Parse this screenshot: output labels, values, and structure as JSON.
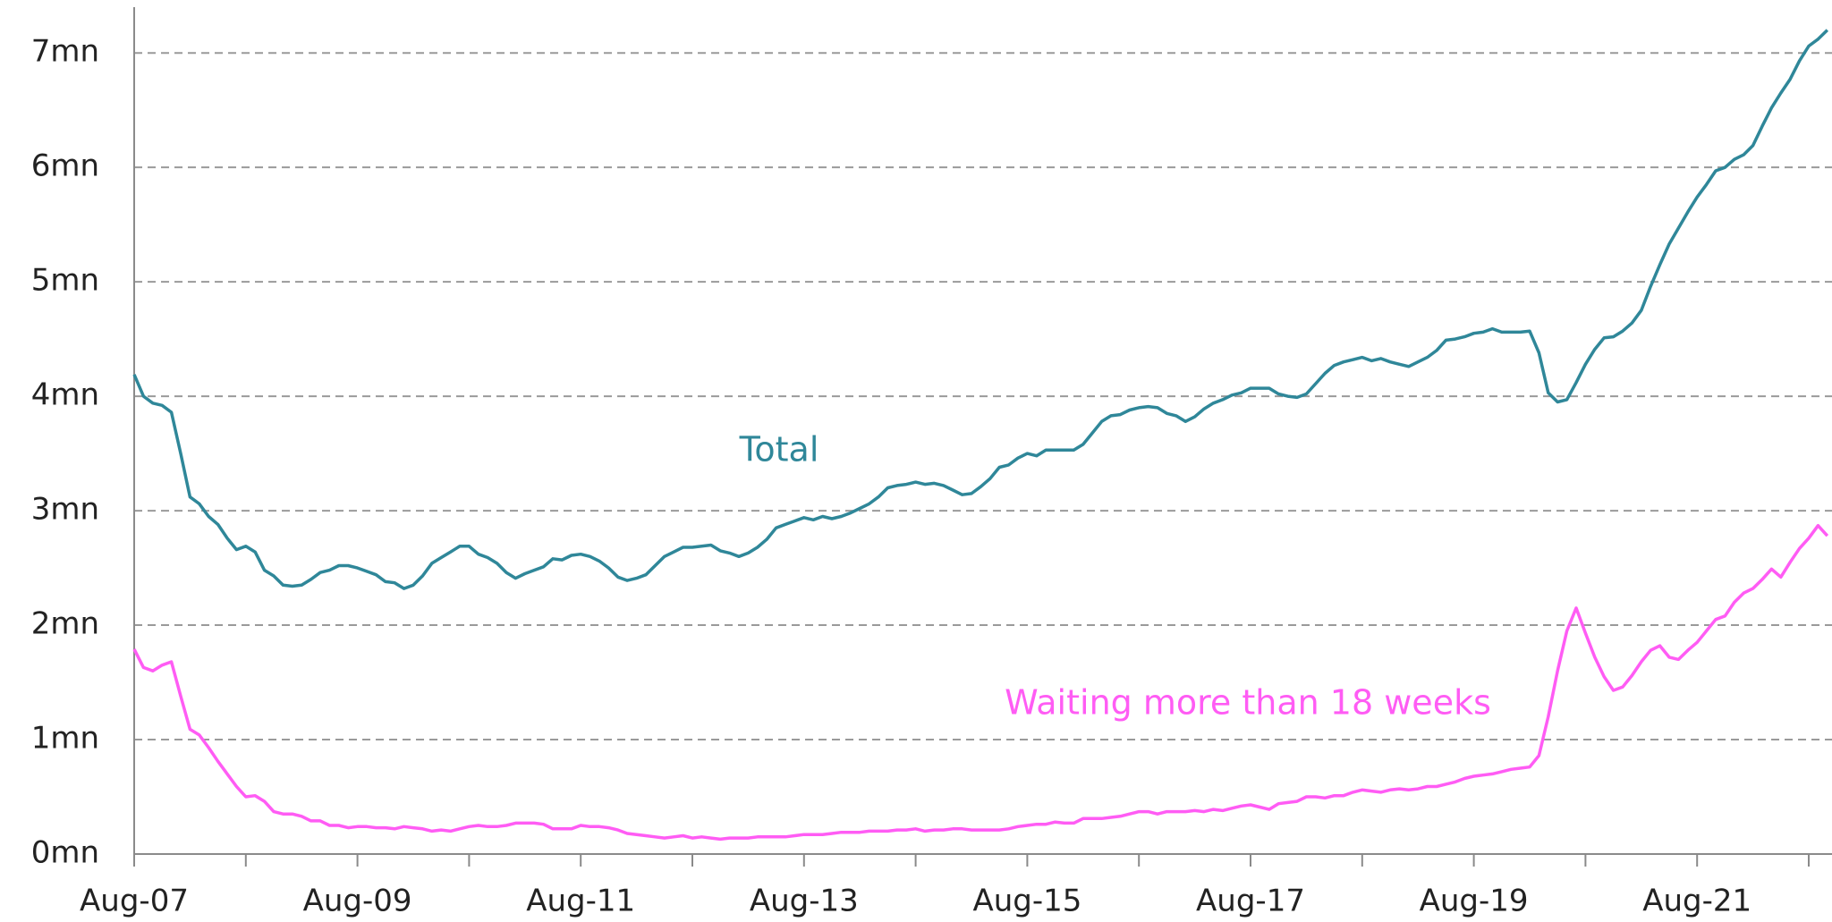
{
  "chart_data": {
    "type": "line",
    "categories": [
      "Aug-07",
      null,
      null,
      null,
      null,
      null,
      null,
      null,
      null,
      null,
      null,
      null,
      null,
      null,
      null,
      null,
      null,
      null,
      null,
      null,
      null,
      null,
      null,
      null,
      "Aug-09",
      null,
      null,
      null,
      null,
      null,
      null,
      null,
      null,
      null,
      null,
      null,
      null,
      null,
      null,
      null,
      null,
      null,
      null,
      null,
      null,
      null,
      null,
      null,
      "Aug-11",
      null,
      null,
      null,
      null,
      null,
      null,
      null,
      null,
      null,
      null,
      null,
      null,
      null,
      null,
      null,
      null,
      null,
      null,
      null,
      null,
      null,
      null,
      null,
      "Aug-13",
      null,
      null,
      null,
      null,
      null,
      null,
      null,
      null,
      null,
      null,
      null,
      null,
      null,
      null,
      null,
      null,
      null,
      null,
      null,
      null,
      null,
      null,
      null,
      "Aug-15",
      null,
      null,
      null,
      null,
      null,
      null,
      null,
      null,
      null,
      null,
      null,
      null,
      null,
      null,
      null,
      null,
      null,
      null,
      null,
      null,
      null,
      null,
      null,
      "Aug-17",
      null,
      null,
      null,
      null,
      null,
      null,
      null,
      null,
      null,
      null,
      null,
      null,
      null,
      null,
      null,
      null,
      null,
      null,
      null,
      null,
      null,
      null,
      null,
      "Aug-19",
      null,
      null,
      null,
      null,
      null,
      null,
      null,
      null,
      null,
      null,
      null,
      null,
      null,
      null,
      null,
      null,
      null,
      null,
      null,
      null,
      null,
      null,
      null,
      "Aug-21",
      null,
      null,
      null,
      null,
      null,
      null,
      null,
      null,
      null,
      null,
      null,
      null,
      null,
      null
    ],
    "series": [
      {
        "name": "Total",
        "color": "#2f8799",
        "values": [
          4.19,
          4.0,
          3.94,
          3.92,
          3.86,
          3.5,
          3.12,
          3.06,
          2.95,
          2.88,
          2.76,
          2.66,
          2.69,
          2.64,
          2.48,
          2.43,
          2.35,
          2.34,
          2.35,
          2.4,
          2.46,
          2.48,
          2.52,
          2.52,
          2.5,
          2.47,
          2.44,
          2.38,
          2.37,
          2.32,
          2.35,
          2.43,
          2.54,
          2.59,
          2.64,
          2.69,
          2.69,
          2.62,
          2.59,
          2.54,
          2.46,
          2.41,
          2.45,
          2.48,
          2.51,
          2.58,
          2.57,
          2.61,
          2.62,
          2.6,
          2.56,
          2.5,
          2.42,
          2.39,
          2.41,
          2.44,
          2.52,
          2.6,
          2.64,
          2.68,
          2.68,
          2.69,
          2.7,
          2.65,
          2.63,
          2.6,
          2.63,
          2.68,
          2.75,
          2.85,
          2.88,
          2.91,
          2.94,
          2.92,
          2.95,
          2.93,
          2.95,
          2.98,
          3.02,
          3.06,
          3.12,
          3.2,
          3.22,
          3.23,
          3.25,
          3.23,
          3.24,
          3.22,
          3.18,
          3.14,
          3.15,
          3.21,
          3.28,
          3.38,
          3.4,
          3.46,
          3.5,
          3.48,
          3.53,
          3.53,
          3.53,
          3.53,
          3.58,
          3.68,
          3.78,
          3.83,
          3.84,
          3.88,
          3.9,
          3.91,
          3.9,
          3.85,
          3.83,
          3.78,
          3.82,
          3.89,
          3.94,
          3.97,
          4.01,
          4.03,
          4.07,
          4.07,
          4.07,
          4.02,
          4.0,
          3.99,
          4.02,
          4.11,
          4.2,
          4.27,
          4.3,
          4.32,
          4.34,
          4.31,
          4.33,
          4.3,
          4.28,
          4.26,
          4.3,
          4.34,
          4.4,
          4.49,
          4.5,
          4.52,
          4.55,
          4.56,
          4.59,
          4.56,
          4.56,
          4.56,
          4.57,
          4.38,
          4.03,
          3.95,
          3.97,
          4.12,
          4.28,
          4.41,
          4.51,
          4.52,
          4.57,
          4.64,
          4.75,
          4.96,
          5.15,
          5.33,
          5.47,
          5.61,
          5.74,
          5.85,
          5.97,
          6.0,
          6.07,
          6.11,
          6.19,
          6.36,
          6.52,
          6.65,
          6.77,
          6.93,
          7.06,
          7.12,
          7.2
        ]
      },
      {
        "name": "Waiting more than 18 weeks",
        "color": "#ff5cf4",
        "values": [
          1.79,
          1.63,
          1.6,
          1.65,
          1.68,
          1.38,
          1.09,
          1.04,
          0.93,
          0.81,
          0.7,
          0.59,
          0.5,
          0.51,
          0.46,
          0.37,
          0.35,
          0.35,
          0.33,
          0.29,
          0.29,
          0.25,
          0.25,
          0.23,
          0.24,
          0.24,
          0.23,
          0.23,
          0.22,
          0.24,
          0.23,
          0.22,
          0.2,
          0.21,
          0.2,
          0.22,
          0.24,
          0.25,
          0.24,
          0.24,
          0.25,
          0.27,
          0.27,
          0.27,
          0.26,
          0.22,
          0.22,
          0.22,
          0.25,
          0.24,
          0.24,
          0.23,
          0.21,
          0.18,
          0.17,
          0.16,
          0.15,
          0.14,
          0.15,
          0.16,
          0.14,
          0.15,
          0.14,
          0.13,
          0.14,
          0.14,
          0.14,
          0.15,
          0.15,
          0.15,
          0.15,
          0.16,
          0.17,
          0.17,
          0.17,
          0.18,
          0.19,
          0.19,
          0.19,
          0.2,
          0.2,
          0.2,
          0.21,
          0.21,
          0.22,
          0.2,
          0.21,
          0.21,
          0.22,
          0.22,
          0.21,
          0.21,
          0.21,
          0.21,
          0.22,
          0.24,
          0.25,
          0.26,
          0.26,
          0.28,
          0.27,
          0.27,
          0.31,
          0.31,
          0.31,
          0.32,
          0.33,
          0.35,
          0.37,
          0.37,
          0.35,
          0.37,
          0.37,
          0.37,
          0.38,
          0.37,
          0.39,
          0.38,
          0.4,
          0.42,
          0.43,
          0.41,
          0.39,
          0.44,
          0.45,
          0.46,
          0.5,
          0.5,
          0.49,
          0.51,
          0.51,
          0.54,
          0.56,
          0.55,
          0.54,
          0.56,
          0.57,
          0.56,
          0.57,
          0.59,
          0.59,
          0.61,
          0.63,
          0.66,
          0.68,
          0.69,
          0.7,
          0.72,
          0.74,
          0.75,
          0.76,
          0.86,
          1.2,
          1.6,
          1.95,
          2.15,
          1.93,
          1.72,
          1.55,
          1.43,
          1.46,
          1.56,
          1.68,
          1.78,
          1.82,
          1.72,
          1.7,
          1.78,
          1.85,
          1.95,
          2.05,
          2.08,
          2.2,
          2.28,
          2.32,
          2.4,
          2.49,
          2.42,
          2.55,
          2.67,
          2.76,
          2.87,
          2.78
        ]
      }
    ],
    "ylim": [
      0,
      7.4
    ],
    "yticks": [
      {
        "value": 0,
        "label": "0mn"
      },
      {
        "value": 1,
        "label": "1mn"
      },
      {
        "value": 2,
        "label": "2mn"
      },
      {
        "value": 3,
        "label": "3mn"
      },
      {
        "value": 4,
        "label": "4mn"
      },
      {
        "value": 5,
        "label": "5mn"
      },
      {
        "value": 6,
        "label": "6mn"
      },
      {
        "value": 7,
        "label": "7mn"
      }
    ],
    "grid": true
  }
}
